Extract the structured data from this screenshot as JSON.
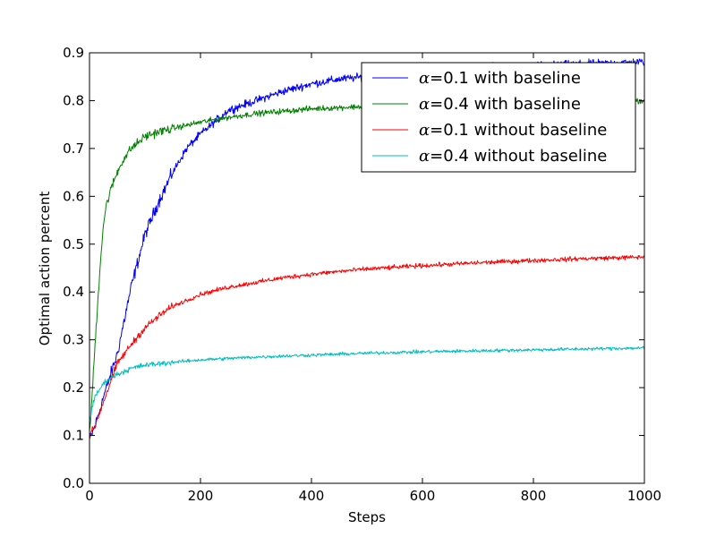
{
  "chart_data": {
    "type": "line",
    "title": "",
    "xlabel": "Steps",
    "ylabel": "Optimal action percent",
    "xlim": [
      0,
      1000
    ],
    "ylim": [
      0.0,
      0.9
    ],
    "x_ticks": [
      "0",
      "200",
      "400",
      "600",
      "800",
      "1000"
    ],
    "y_ticks": [
      "0.0",
      "0.1",
      "0.2",
      "0.3",
      "0.4",
      "0.5",
      "0.6",
      "0.7",
      "0.8",
      "0.9"
    ],
    "grid": false,
    "legend_position": "upper-right",
    "series": [
      {
        "name": "α=0.1 with baseline",
        "legend_alpha_value": "0.1",
        "legend_suffix": "with baseline",
        "color": "#0000ff",
        "x": [
          0,
          10,
          25,
          50,
          75,
          100,
          125,
          150,
          175,
          200,
          250,
          300,
          350,
          400,
          450,
          500,
          550,
          600,
          650,
          700,
          750,
          800,
          850,
          900,
          950,
          1000
        ],
        "y": [
          0.09,
          0.12,
          0.18,
          0.27,
          0.41,
          0.52,
          0.59,
          0.65,
          0.7,
          0.73,
          0.78,
          0.8,
          0.82,
          0.835,
          0.845,
          0.85,
          0.855,
          0.86,
          0.865,
          0.868,
          0.871,
          0.873,
          0.875,
          0.877,
          0.879,
          0.881
        ],
        "noise": 0.007
      },
      {
        "name": "α=0.4 with baseline",
        "legend_alpha_value": "0.4",
        "legend_suffix": "with baseline",
        "color": "#008000",
        "x": [
          0,
          5,
          10,
          15,
          20,
          25,
          30,
          40,
          50,
          60,
          75,
          100,
          125,
          150,
          200,
          250,
          300,
          400,
          500,
          600,
          700,
          800,
          900,
          1000
        ],
        "y": [
          0.1,
          0.19,
          0.29,
          0.38,
          0.47,
          0.54,
          0.58,
          0.62,
          0.65,
          0.675,
          0.7,
          0.725,
          0.735,
          0.742,
          0.755,
          0.765,
          0.773,
          0.783,
          0.788,
          0.792,
          0.795,
          0.797,
          0.799,
          0.8
        ],
        "noise": 0.005
      },
      {
        "name": "α=0.1 without baseline",
        "legend_alpha_value": "0.1",
        "legend_suffix": "without baseline",
        "color": "#ff0000",
        "x": [
          0,
          10,
          25,
          50,
          75,
          100,
          125,
          150,
          200,
          250,
          300,
          350,
          400,
          450,
          500,
          600,
          700,
          800,
          900,
          1000
        ],
        "y": [
          0.1,
          0.12,
          0.17,
          0.25,
          0.29,
          0.325,
          0.35,
          0.37,
          0.395,
          0.41,
          0.42,
          0.43,
          0.437,
          0.443,
          0.448,
          0.455,
          0.461,
          0.466,
          0.47,
          0.473
        ],
        "noise": 0.004
      },
      {
        "name": "α=0.4 without baseline",
        "legend_alpha_value": "0.4",
        "legend_suffix": "without baseline",
        "color": "#00bfbf",
        "x": [
          0,
          5,
          10,
          20,
          30,
          50,
          75,
          100,
          150,
          200,
          300,
          400,
          500,
          600,
          700,
          800,
          900,
          1000
        ],
        "y": [
          0.13,
          0.16,
          0.18,
          0.2,
          0.215,
          0.228,
          0.24,
          0.247,
          0.253,
          0.258,
          0.264,
          0.268,
          0.272,
          0.275,
          0.277,
          0.279,
          0.281,
          0.283
        ],
        "noise": 0.003
      }
    ]
  }
}
